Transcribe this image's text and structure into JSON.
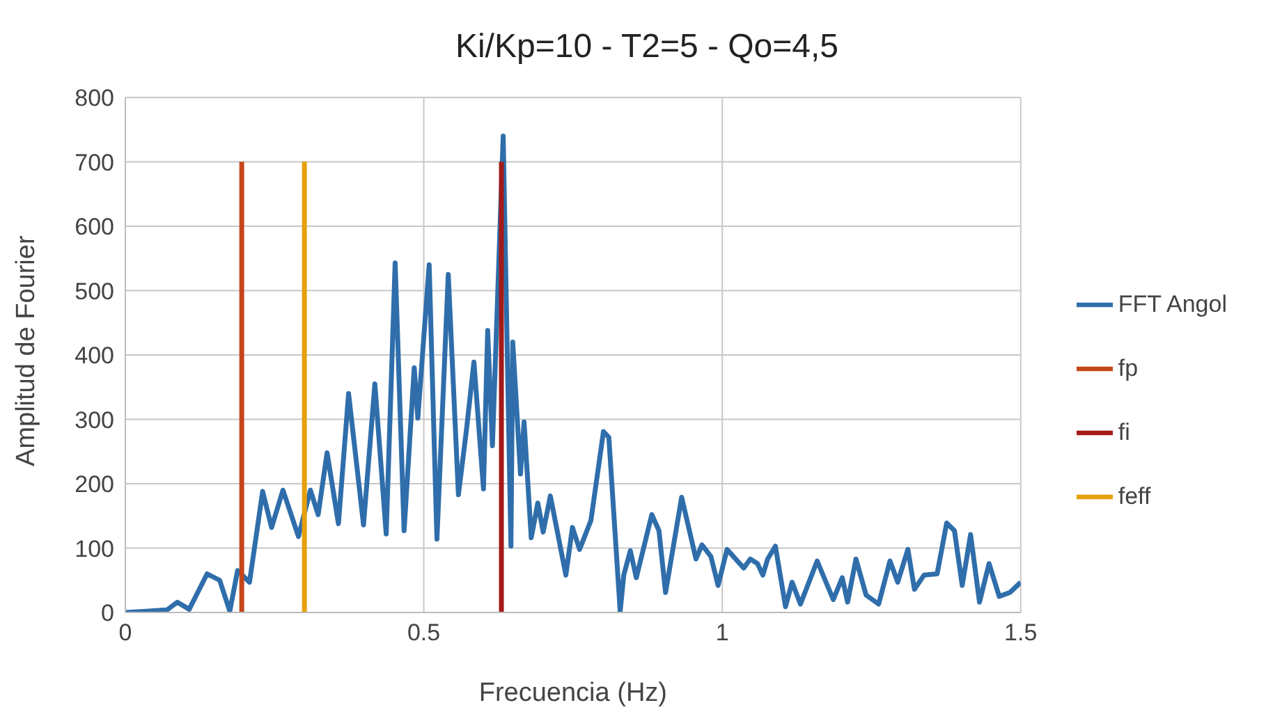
{
  "chart_data": {
    "type": "line",
    "title": "Ki/Kp=10 - T2=5 - Qo=4,5",
    "xlabel": "Frecuencia (Hz)",
    "ylabel": "Amplitud de Fourier",
    "xlim": [
      0,
      1.5
    ],
    "xticks": [
      0,
      0.5,
      1,
      1.5
    ],
    "ylim": [
      0,
      800
    ],
    "yticks": [
      0,
      100,
      200,
      300,
      400,
      500,
      600,
      700,
      800
    ],
    "grid": true,
    "legend": "right",
    "marker": "none",
    "line_style": "solid",
    "series": [
      {
        "name": "FFT Angol",
        "color": "#2f6eab",
        "x": [
          0,
          0.035,
          0.07,
          0.087,
          0.107,
          0.137,
          0.158,
          0.175,
          0.188,
          0.208,
          0.23,
          0.245,
          0.264,
          0.29,
          0.31,
          0.323,
          0.338,
          0.357,
          0.374,
          0.399,
          0.418,
          0.437,
          0.452,
          0.467,
          0.484,
          0.49,
          0.509,
          0.522,
          0.541,
          0.558,
          0.571,
          0.584,
          0.6,
          0.607,
          0.615,
          0.633,
          0.646,
          0.649,
          0.662,
          0.668,
          0.68,
          0.691,
          0.7,
          0.712,
          0.738,
          0.749,
          0.761,
          0.78,
          0.801,
          0.81,
          0.829,
          0.835,
          0.846,
          0.856,
          0.882,
          0.894,
          0.905,
          0.932,
          0.956,
          0.966,
          0.981,
          0.993,
          1.008,
          1.036,
          1.047,
          1.059,
          1.068,
          1.076,
          1.089,
          1.106,
          1.117,
          1.131,
          1.159,
          1.186,
          1.201,
          1.21,
          1.224,
          1.241,
          1.262,
          1.281,
          1.294,
          1.311,
          1.322,
          1.338,
          1.36,
          1.376,
          1.389,
          1.402,
          1.416,
          1.431,
          1.447,
          1.464,
          1.482,
          1.5
        ],
        "values": [
          0,
          2,
          4,
          16,
          5,
          60,
          50,
          2,
          65,
          47,
          188,
          132,
          190,
          118,
          190,
          152,
          248,
          138,
          340,
          136,
          355,
          122,
          543,
          127,
          380,
          302,
          540,
          114,
          525,
          183,
          280,
          389,
          192,
          438,
          259,
          740,
          103,
          420,
          215,
          296,
          116,
          170,
          125,
          181,
          58,
          132,
          98,
          143,
          281,
          272,
          2,
          58,
          96,
          54,
          152,
          127,
          31,
          179,
          83,
          105,
          87,
          42,
          98,
          69,
          83,
          76,
          58,
          83,
          103,
          9,
          47,
          13,
          80,
          20,
          54,
          16,
          83,
          27,
          13,
          80,
          47,
          98,
          36,
          58,
          60,
          139,
          127,
          42,
          121,
          16,
          76,
          25,
          31,
          47
        ]
      },
      {
        "name": "fp",
        "color": "#c5461a",
        "x": [
          0.195,
          0.195
        ],
        "values": [
          0,
          700
        ]
      },
      {
        "name": "fi",
        "color": "#a31a1a",
        "x": [
          0.63,
          0.63
        ],
        "values": [
          0,
          700
        ]
      },
      {
        "name": "feff",
        "color": "#e6a00a",
        "x": [
          0.3,
          0.3
        ],
        "values": [
          0,
          700
        ]
      }
    ]
  }
}
